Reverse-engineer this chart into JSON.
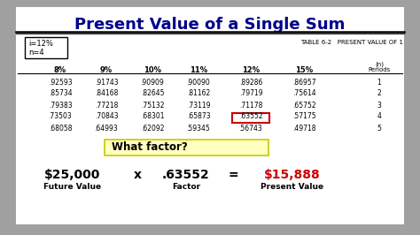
{
  "title": "Present Value of a Single Sum",
  "title_color": "#00008B",
  "background_color": "#A0A0A0",
  "slide_bg": "#FFFFFF",
  "table_header": "TABLE 6-2   PRESENT VALUE OF 1",
  "i_label": "i=12%",
  "n_label": "n=4",
  "col_headers": [
    "8%",
    "9%",
    "10%",
    "11%",
    "12%",
    "15%"
  ],
  "period_header_line1": "(n)",
  "period_header_line2": "Periods",
  "rows": [
    [
      ".92593",
      ".91743",
      ".90909",
      ".90090",
      ".89286",
      ".86957",
      "1"
    ],
    [
      ".85734",
      ".84168",
      ".82645",
      ".81162",
      ".79719",
      ".75614",
      "2"
    ],
    [
      ".79383",
      ".77218",
      ".75132",
      ".73119",
      ".71178",
      ".65752",
      "3"
    ],
    [
      ".73503",
      ".70843",
      ".68301",
      ".65873",
      ".63552",
      ".57175",
      "4"
    ],
    [
      ".68058",
      ".64993",
      ".62092",
      ".59345",
      ".56743",
      ".49718",
      "5"
    ]
  ],
  "highlighted_row": 3,
  "highlighted_col": 4,
  "highlighted_cell_color": "#CC0000",
  "what_factor_text": "What factor?",
  "what_factor_bg": "#FFFFC0",
  "what_factor_border": "#C8C800",
  "formula_fv": "$25,000",
  "formula_x": "x",
  "formula_factor": ".63552",
  "formula_eq": "=",
  "formula_pv": "$15,888",
  "formula_fv_label": "Future Value",
  "formula_factor_label": "Factor",
  "formula_pv_label": "Present Value",
  "formula_pv_color": "#CC0000",
  "formula_fv_color": "#000000",
  "formula_factor_color": "#000000"
}
